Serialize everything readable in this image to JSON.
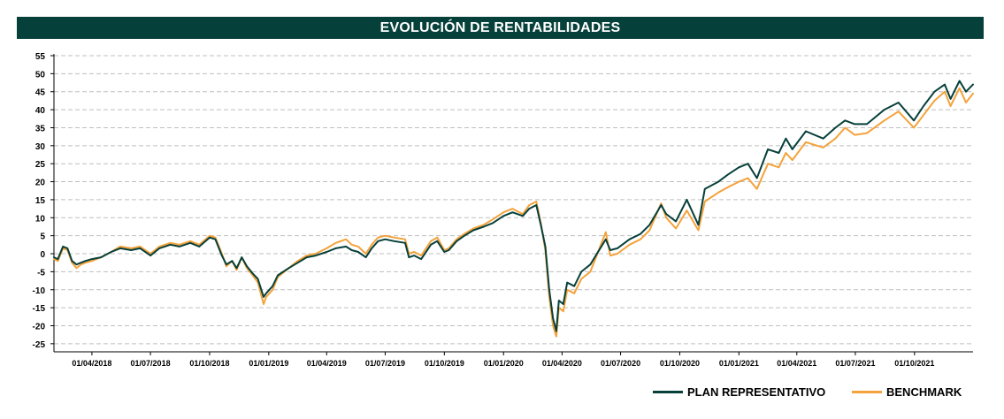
{
  "header": {
    "title": "EVOLUCIÓN DE RENTABILIDADES"
  },
  "colors": {
    "header_bg": "#06403a",
    "plan": "#06403a",
    "benchmark": "#f4a23b",
    "grid": "#bfbfbf"
  },
  "chart_data": {
    "type": "line",
    "title": "EVOLUCIÓN DE RENTABILIDADES",
    "xlabel": "",
    "ylabel": "",
    "x_range": [
      "2018-02-01",
      "2021-12-31"
    ],
    "ylim": [
      -27,
      55
    ],
    "yticks": [
      -25,
      -20,
      -15,
      -10,
      -5,
      0,
      5,
      10,
      15,
      20,
      25,
      30,
      35,
      40,
      45,
      50,
      55
    ],
    "xticks": [
      "01/04/2018",
      "01/07/2018",
      "01/10/2018",
      "01/01/2019",
      "01/04/2019",
      "01/07/2019",
      "01/10/2019",
      "01/01/2020",
      "01/04/2020",
      "01/07/2020",
      "01/10/2020",
      "01/01/2021",
      "01/04/2021",
      "01/07/2021",
      "01/10/2021"
    ],
    "grid": "horizontal dashed",
    "legend_position": "bottom-right",
    "series": [
      {
        "name": "PLAN REPRESENTATIVO",
        "color": "#06403a",
        "points": [
          [
            "2018-02-01",
            -1
          ],
          [
            "2018-02-07",
            -1.5
          ],
          [
            "2018-02-15",
            2
          ],
          [
            "2018-02-22",
            1.5
          ],
          [
            "2018-03-01",
            -2
          ],
          [
            "2018-03-08",
            -3
          ],
          [
            "2018-03-15",
            -2.5
          ],
          [
            "2018-03-22",
            -2
          ],
          [
            "2018-04-01",
            -1.5
          ],
          [
            "2018-04-15",
            -1
          ],
          [
            "2018-05-01",
            0.5
          ],
          [
            "2018-05-15",
            1.5
          ],
          [
            "2018-06-01",
            1
          ],
          [
            "2018-06-15",
            1.5
          ],
          [
            "2018-07-01",
            -0.5
          ],
          [
            "2018-07-15",
            1.5
          ],
          [
            "2018-08-01",
            2.5
          ],
          [
            "2018-08-15",
            2
          ],
          [
            "2018-09-01",
            3
          ],
          [
            "2018-09-15",
            2
          ],
          [
            "2018-10-01",
            4.5
          ],
          [
            "2018-10-10",
            4
          ],
          [
            "2018-10-20",
            -0.5
          ],
          [
            "2018-10-27",
            -3
          ],
          [
            "2018-11-05",
            -2
          ],
          [
            "2018-11-12",
            -4
          ],
          [
            "2018-11-20",
            -1
          ],
          [
            "2018-11-28",
            -3.5
          ],
          [
            "2018-12-07",
            -5.5
          ],
          [
            "2018-12-15",
            -7
          ],
          [
            "2018-12-24",
            -12
          ],
          [
            "2018-12-28",
            -11
          ],
          [
            "2019-01-07",
            -9
          ],
          [
            "2019-01-15",
            -6
          ],
          [
            "2019-02-01",
            -4
          ],
          [
            "2019-02-15",
            -2.5
          ],
          [
            "2019-03-01",
            -1
          ],
          [
            "2019-03-15",
            -0.5
          ],
          [
            "2019-04-01",
            0.5
          ],
          [
            "2019-04-15",
            1.5
          ],
          [
            "2019-05-01",
            2
          ],
          [
            "2019-05-10",
            1
          ],
          [
            "2019-05-20",
            0.5
          ],
          [
            "2019-06-01",
            -1
          ],
          [
            "2019-06-10",
            1.5
          ],
          [
            "2019-06-20",
            3.5
          ],
          [
            "2019-07-01",
            4
          ],
          [
            "2019-07-15",
            3.5
          ],
          [
            "2019-08-01",
            3
          ],
          [
            "2019-08-07",
            -1
          ],
          [
            "2019-08-15",
            -0.5
          ],
          [
            "2019-08-26",
            -1.5
          ],
          [
            "2019-09-10",
            2.5
          ],
          [
            "2019-09-20",
            3.5
          ],
          [
            "2019-10-01",
            0.5
          ],
          [
            "2019-10-08",
            1
          ],
          [
            "2019-10-20",
            3.5
          ],
          [
            "2019-11-01",
            5
          ],
          [
            "2019-11-15",
            6.5
          ],
          [
            "2019-12-01",
            7.5
          ],
          [
            "2019-12-15",
            8.5
          ],
          [
            "2020-01-01",
            10.5
          ],
          [
            "2020-01-15",
            11.5
          ],
          [
            "2020-01-31",
            10.5
          ],
          [
            "2020-02-10",
            12.5
          ],
          [
            "2020-02-21",
            13.5
          ],
          [
            "2020-02-28",
            8
          ],
          [
            "2020-03-06",
            2
          ],
          [
            "2020-03-12",
            -10
          ],
          [
            "2020-03-18",
            -18
          ],
          [
            "2020-03-23",
            -21.5
          ],
          [
            "2020-03-27",
            -13
          ],
          [
            "2020-04-03",
            -14
          ],
          [
            "2020-04-09",
            -8
          ],
          [
            "2020-04-20",
            -9
          ],
          [
            "2020-05-01",
            -5
          ],
          [
            "2020-05-15",
            -3
          ],
          [
            "2020-06-08",
            4
          ],
          [
            "2020-06-15",
            1
          ],
          [
            "2020-06-26",
            1.5
          ],
          [
            "2020-07-15",
            4
          ],
          [
            "2020-08-01",
            5.5
          ],
          [
            "2020-08-15",
            8
          ],
          [
            "2020-09-02",
            13.5
          ],
          [
            "2020-09-10",
            11
          ],
          [
            "2020-09-25",
            9
          ],
          [
            "2020-10-12",
            15
          ],
          [
            "2020-10-30",
            8
          ],
          [
            "2020-11-09",
            18
          ],
          [
            "2020-11-30",
            20
          ],
          [
            "2020-12-15",
            22
          ],
          [
            "2021-01-01",
            24
          ],
          [
            "2021-01-15",
            25
          ],
          [
            "2021-01-29",
            21
          ],
          [
            "2021-02-15",
            29
          ],
          [
            "2021-03-04",
            28
          ],
          [
            "2021-03-15",
            32
          ],
          [
            "2021-03-25",
            29
          ],
          [
            "2021-04-15",
            34
          ],
          [
            "2021-05-12",
            32
          ],
          [
            "2021-05-31",
            35
          ],
          [
            "2021-06-15",
            37
          ],
          [
            "2021-06-30",
            36
          ],
          [
            "2021-07-19",
            36
          ],
          [
            "2021-08-15",
            40
          ],
          [
            "2021-09-06",
            42
          ],
          [
            "2021-09-30",
            37
          ],
          [
            "2021-10-15",
            41
          ],
          [
            "2021-11-01",
            45
          ],
          [
            "2021-11-17",
            47
          ],
          [
            "2021-11-26",
            43
          ],
          [
            "2021-12-10",
            48
          ],
          [
            "2021-12-20",
            45
          ],
          [
            "2021-12-31",
            47
          ]
        ]
      },
      {
        "name": "BENCHMARK",
        "color": "#f4a23b",
        "points": [
          [
            "2018-02-01",
            -1.5
          ],
          [
            "2018-02-07",
            -2
          ],
          [
            "2018-02-15",
            1.5
          ],
          [
            "2018-02-22",
            1
          ],
          [
            "2018-03-01",
            -2.5
          ],
          [
            "2018-03-08",
            -4
          ],
          [
            "2018-03-15",
            -3
          ],
          [
            "2018-03-22",
            -2.5
          ],
          [
            "2018-04-01",
            -2
          ],
          [
            "2018-04-15",
            -1
          ],
          [
            "2018-05-01",
            0.5
          ],
          [
            "2018-05-15",
            2
          ],
          [
            "2018-06-01",
            1.5
          ],
          [
            "2018-06-15",
            2
          ],
          [
            "2018-07-01",
            0
          ],
          [
            "2018-07-15",
            2
          ],
          [
            "2018-08-01",
            3
          ],
          [
            "2018-08-15",
            2.5
          ],
          [
            "2018-09-01",
            3.5
          ],
          [
            "2018-09-15",
            2.5
          ],
          [
            "2018-10-01",
            5
          ],
          [
            "2018-10-10",
            4.5
          ],
          [
            "2018-10-20",
            0
          ],
          [
            "2018-10-27",
            -3.5
          ],
          [
            "2018-11-05",
            -2
          ],
          [
            "2018-11-12",
            -4.5
          ],
          [
            "2018-11-20",
            -1
          ],
          [
            "2018-11-28",
            -4
          ],
          [
            "2018-12-07",
            -6
          ],
          [
            "2018-12-15",
            -8
          ],
          [
            "2018-12-24",
            -14
          ],
          [
            "2018-12-28",
            -12
          ],
          [
            "2019-01-07",
            -10
          ],
          [
            "2019-01-15",
            -6.5
          ],
          [
            "2019-02-01",
            -4
          ],
          [
            "2019-02-15",
            -2
          ],
          [
            "2019-03-01",
            -0.5
          ],
          [
            "2019-03-15",
            0
          ],
          [
            "2019-04-01",
            1.5
          ],
          [
            "2019-04-15",
            3
          ],
          [
            "2019-05-01",
            4
          ],
          [
            "2019-05-10",
            2.5
          ],
          [
            "2019-05-20",
            2
          ],
          [
            "2019-06-01",
            0
          ],
          [
            "2019-06-10",
            2.5
          ],
          [
            "2019-06-20",
            4.5
          ],
          [
            "2019-07-01",
            5
          ],
          [
            "2019-07-15",
            4.5
          ],
          [
            "2019-08-01",
            4
          ],
          [
            "2019-08-07",
            0
          ],
          [
            "2019-08-15",
            0.5
          ],
          [
            "2019-08-26",
            -0.5
          ],
          [
            "2019-09-10",
            3.5
          ],
          [
            "2019-09-20",
            4.5
          ],
          [
            "2019-10-01",
            1
          ],
          [
            "2019-10-08",
            1.5
          ],
          [
            "2019-10-20",
            4
          ],
          [
            "2019-11-01",
            5.5
          ],
          [
            "2019-11-15",
            7
          ],
          [
            "2019-12-01",
            8
          ],
          [
            "2019-12-15",
            9.5
          ],
          [
            "2020-01-01",
            11.5
          ],
          [
            "2020-01-15",
            12.5
          ],
          [
            "2020-01-31",
            11
          ],
          [
            "2020-02-10",
            13.5
          ],
          [
            "2020-02-21",
            14.5
          ],
          [
            "2020-02-28",
            8.5
          ],
          [
            "2020-03-06",
            1
          ],
          [
            "2020-03-12",
            -12
          ],
          [
            "2020-03-18",
            -20
          ],
          [
            "2020-03-23",
            -23
          ],
          [
            "2020-03-27",
            -15
          ],
          [
            "2020-04-03",
            -16
          ],
          [
            "2020-04-09",
            -10
          ],
          [
            "2020-04-20",
            -11
          ],
          [
            "2020-05-01",
            -7
          ],
          [
            "2020-05-15",
            -5
          ],
          [
            "2020-06-08",
            6
          ],
          [
            "2020-06-15",
            -0.5
          ],
          [
            "2020-06-26",
            0
          ],
          [
            "2020-07-15",
            2.5
          ],
          [
            "2020-08-01",
            4
          ],
          [
            "2020-08-15",
            6.5
          ],
          [
            "2020-09-02",
            14
          ],
          [
            "2020-09-10",
            10
          ],
          [
            "2020-09-25",
            7
          ],
          [
            "2020-10-12",
            12
          ],
          [
            "2020-10-30",
            6.5
          ],
          [
            "2020-11-09",
            14.5
          ],
          [
            "2020-11-30",
            17
          ],
          [
            "2020-12-15",
            18.5
          ],
          [
            "2021-01-01",
            20
          ],
          [
            "2021-01-15",
            21
          ],
          [
            "2021-01-29",
            18
          ],
          [
            "2021-02-15",
            25
          ],
          [
            "2021-03-04",
            24
          ],
          [
            "2021-03-15",
            28
          ],
          [
            "2021-03-25",
            26
          ],
          [
            "2021-04-15",
            31
          ],
          [
            "2021-05-12",
            29.5
          ],
          [
            "2021-05-31",
            32
          ],
          [
            "2021-06-15",
            35
          ],
          [
            "2021-06-30",
            33
          ],
          [
            "2021-07-19",
            33.5
          ],
          [
            "2021-08-15",
            37
          ],
          [
            "2021-09-06",
            39.5
          ],
          [
            "2021-09-30",
            35
          ],
          [
            "2021-10-15",
            38.5
          ],
          [
            "2021-11-01",
            42.5
          ],
          [
            "2021-11-17",
            45
          ],
          [
            "2021-11-26",
            41
          ],
          [
            "2021-12-10",
            46
          ],
          [
            "2021-12-20",
            42
          ],
          [
            "2021-12-31",
            44.5
          ]
        ]
      }
    ]
  },
  "legend": {
    "items": [
      {
        "label": "PLAN REPRESENTATIVO",
        "color": "#06403a"
      },
      {
        "label": "BENCHMARK",
        "color": "#f4a23b"
      }
    ]
  }
}
